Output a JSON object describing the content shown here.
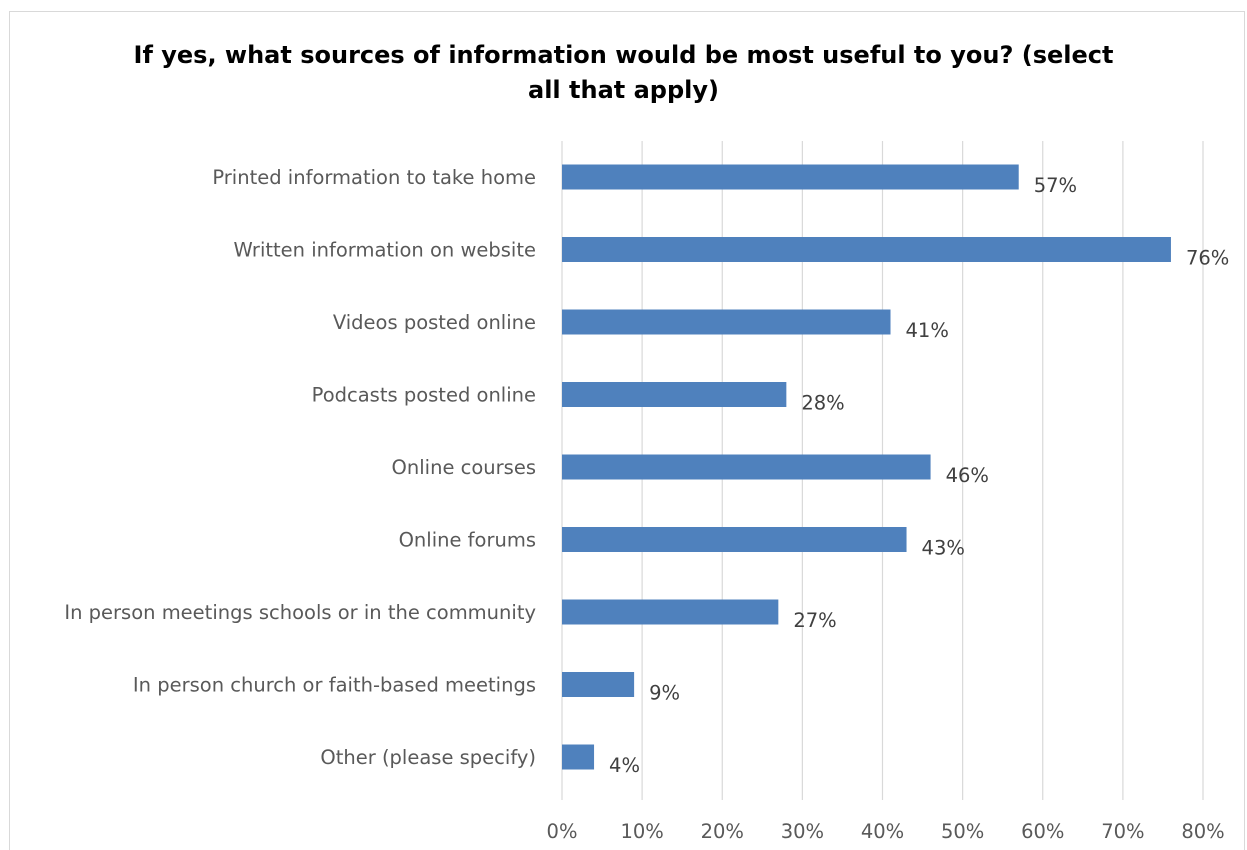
{
  "chart_data": {
    "type": "bar",
    "orientation": "horizontal",
    "title_lines": [
      "If yes, what sources of information would be most useful to you? (select",
      "all that apply)"
    ],
    "categories": [
      "Printed information to take home",
      "Written information on website",
      "Videos posted online",
      "Podcasts posted online",
      "Online courses",
      "Online forums",
      "In person meetings schools or in the community",
      "In person church or faith-based meetings",
      "Other (please specify)"
    ],
    "values": [
      57,
      76,
      41,
      28,
      46,
      43,
      27,
      9,
      4
    ],
    "data_labels": [
      "57%",
      "76%",
      "41%",
      "28%",
      "46%",
      "43%",
      "27%",
      "9%",
      "4%"
    ],
    "xlim": [
      0,
      80
    ],
    "x_ticks": [
      0,
      10,
      20,
      30,
      40,
      50,
      60,
      70,
      80
    ],
    "x_tick_labels": [
      "0%",
      "10%",
      "20%",
      "30%",
      "40%",
      "50%",
      "60%",
      "70%",
      "80%"
    ],
    "grid": "vertical",
    "legend": "none",
    "bar_color": "#4f81bd",
    "grid_color": "#d9d9d9"
  }
}
